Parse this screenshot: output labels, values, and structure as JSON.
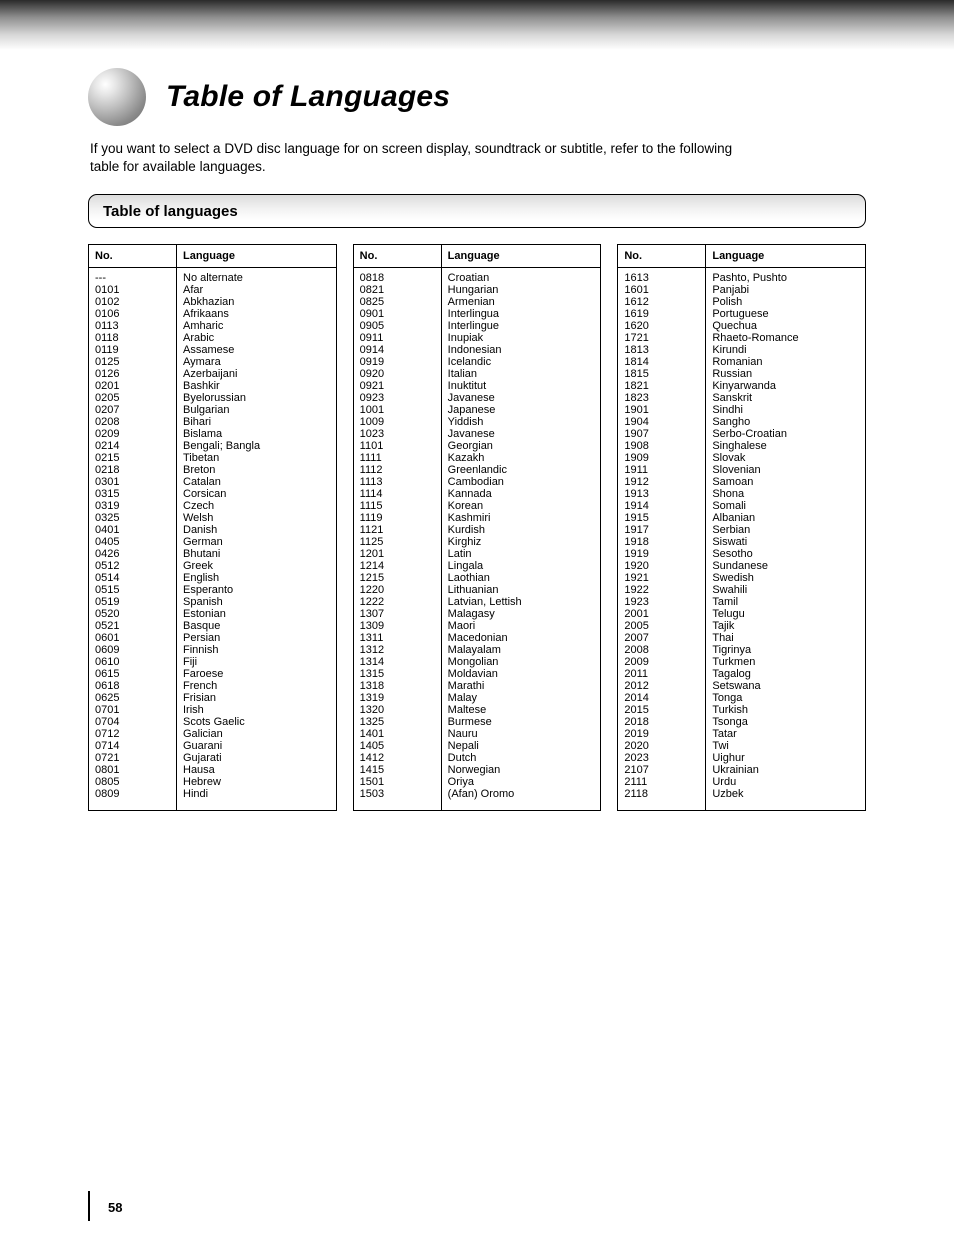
{
  "header": {
    "title": "Table of Languages",
    "subtitle_line1": "If you want to select a DVD disc language for on screen display, soundtrack or subtitle, refer to the following",
    "subtitle_line2": "table for available languages.",
    "section_label": "Table of languages"
  },
  "tables": {
    "col_header_left": "No.",
    "col_header_right": "Language",
    "columns": [
      {
        "codes": [
          "---",
          "0101",
          "0102",
          "0106",
          "0113",
          "0118",
          "0119",
          "0125",
          "0126",
          "0201",
          "0205",
          "0207",
          "0208",
          "0209",
          "0214",
          "0215",
          "0218",
          "0301",
          "0315",
          "0319",
          "0325",
          "0401",
          "0405",
          "0426",
          "0512",
          "0514",
          "0515",
          "0519",
          "0520",
          "0521",
          "0601",
          "0609",
          "0610",
          "0615",
          "0618",
          "0625",
          "0701",
          "0704",
          "0712",
          "0714",
          "0721",
          "0801",
          "0805",
          "0809"
        ],
        "langs": [
          "No alternate",
          "Afar",
          "Abkhazian",
          "Afrikaans",
          "Amharic",
          "Arabic",
          "Assamese",
          "Aymara",
          "Azerbaijani",
          "Bashkir",
          "Byelorussian",
          "Bulgarian",
          "Bihari",
          "Bislama",
          "Bengali; Bangla",
          "Tibetan",
          "Breton",
          "Catalan",
          "Corsican",
          "Czech",
          "Welsh",
          "Danish",
          "German",
          "Bhutani",
          "Greek",
          "English",
          "Esperanto",
          "Spanish",
          "Estonian",
          "Basque",
          "Persian",
          "Finnish",
          "Fiji",
          "Faroese",
          "French",
          "Frisian",
          "Irish",
          "Scots Gaelic",
          "Galician",
          "Guarani",
          "Gujarati",
          "Hausa",
          "Hebrew",
          "Hindi"
        ]
      },
      {
        "codes": [
          "0818",
          "0821",
          "0825",
          "0901",
          "0905",
          "0911",
          "0914",
          "0919",
          "0920",
          "0921",
          "0923",
          "1001",
          "1009",
          "1023",
          "1101",
          "1111",
          "1112",
          "1113",
          "1114",
          "1115",
          "1119",
          "1121",
          "1125",
          "1201",
          "1214",
          "1215",
          "1220",
          "1222",
          "1307",
          "1309",
          "1311",
          "1312",
          "1314",
          "1315",
          "1318",
          "1319",
          "1320",
          "1325",
          "1401",
          "1405",
          "1412",
          "1415",
          "1501",
          "1503"
        ],
        "langs": [
          "Croatian",
          "Hungarian",
          "Armenian",
          "Interlingua",
          "Interlingue",
          "Inupiak",
          "Indonesian",
          "Icelandic",
          "Italian",
          "Inuktitut",
          "Javanese",
          "Japanese",
          "Yiddish",
          "Javanese",
          "Georgian",
          "Kazakh",
          "Greenlandic",
          "Cambodian",
          "Kannada",
          "Korean",
          "Kashmiri",
          "Kurdish",
          "Kirghiz",
          "Latin",
          "Lingala",
          "Laothian",
          "Lithuanian",
          "Latvian, Lettish",
          "Malagasy",
          "Maori",
          "Macedonian",
          "Malayalam",
          "Mongolian",
          "Moldavian",
          "Marathi",
          "Malay",
          "Maltese",
          "Burmese",
          "Nauru",
          "Nepali",
          "Dutch",
          "Norwegian",
          "Oriya",
          "(Afan) Oromo"
        ]
      },
      {
        "codes": [
          "1613",
          "1601",
          "1612",
          "1619",
          "1620",
          "1721",
          "1813",
          "1814",
          "1815",
          "1821",
          "1823",
          "1901",
          "1904",
          "1907",
          "1908",
          "1909",
          "1911",
          "1912",
          "1913",
          "1914",
          "1915",
          "1917",
          "1918",
          "1919",
          "1920",
          "1921",
          "1922",
          "1923",
          "2001",
          "2005",
          "2007",
          "2008",
          "2009",
          "2011",
          "2012",
          "2014",
          "2015",
          "2018",
          "2019",
          "2020",
          "2023",
          "2107",
          "2111",
          "2118"
        ],
        "langs": [
          "Pashto, Pushto",
          "Panjabi",
          "Polish",
          "Portuguese",
          "Quechua",
          "Rhaeto-Romance",
          "Kirundi",
          "Romanian",
          "Russian",
          "Kinyarwanda",
          "Sanskrit",
          "Sindhi",
          "Sangho",
          "Serbo-Croatian",
          "Singhalese",
          "Slovak",
          "Slovenian",
          "Samoan",
          "Shona",
          "Somali",
          "Albanian",
          "Serbian",
          "Siswati",
          "Sesotho",
          "Sundanese",
          "Swedish",
          "Swahili",
          "Tamil",
          "Telugu",
          "Tajik",
          "Thai",
          "Tigrinya",
          "Turkmen",
          "Tagalog",
          "Setswana",
          "Tonga",
          "Turkish",
          "Tsonga",
          "Tatar",
          "Twi",
          "Uighur",
          "Ukrainian",
          "Urdu",
          "Uzbek"
        ]
      }
    ]
  },
  "page_number": "58"
}
